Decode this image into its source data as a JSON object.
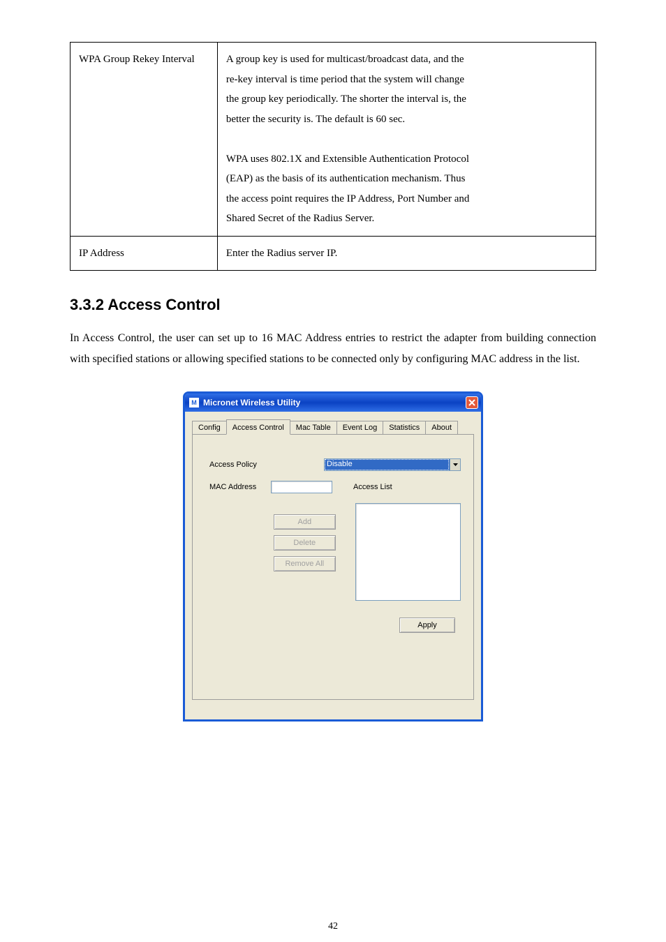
{
  "page_number": "42",
  "table": {
    "rows": [
      {
        "param": "WPA Group Rekey Interval",
        "desc_multiline": [
          "A group key is used for multicast/broadcast data, and the",
          "re-key interval is time period that the system will change",
          "the group key periodically. The shorter the interval is, the",
          "better the security is. The default is 60 sec.",
          "",
          "WPA uses 802.1X and Extensible Authentication Protocol",
          "(EAP) as the basis of its authentication mechanism. Thus",
          "the access point requires the IP Address, Port Number and",
          "Shared Secret of the Radius Server."
        ]
      },
      {
        "param": "IP Address",
        "desc_multiline": [
          "Enter the Radius server IP."
        ]
      }
    ]
  },
  "section": {
    "number": "3.3.2",
    "title": "Access Control",
    "paragraphs": [
      "In Access Control, the user can set up to 16 MAC Address entries to restrict the adapter from building connection with specified stations or allowing specified stations to be connected only by configuring MAC address in the list."
    ]
  },
  "window": {
    "title": "Micronet Wireless Utility",
    "app_icon_text": "M",
    "tabs": [
      "Config",
      "Access Control",
      "Mac Table",
      "Event Log",
      "Statistics",
      "About"
    ],
    "active_tab_index": 1,
    "labels": {
      "access_policy": "Access Policy",
      "mac_address": "MAC Address",
      "access_list": "Access List"
    },
    "policy_value": "Disable",
    "mac_value": "",
    "buttons": {
      "add": "Add",
      "delete": "Delete",
      "remove_all": "Remove All",
      "apply": "Apply"
    },
    "button_enabled": {
      "add": false,
      "delete": false,
      "remove_all": false,
      "apply": true
    },
    "access_list_items": []
  },
  "colors": {
    "titlebar_gradient_top": "#2f6ee6",
    "titlebar_gradient_bottom": "#0b42c3",
    "window_border": "#1a5bd6",
    "client_bg": "#ece9d8",
    "select_highlight": "#316ac5",
    "close_btn": "#e35a3c",
    "disabled_text": "#a0a0a0"
  }
}
